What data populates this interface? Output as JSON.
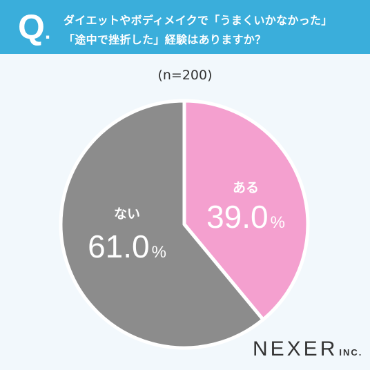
{
  "question": {
    "mark": "Q",
    "mark_dot": ".",
    "line1": "ダイエットやボディメイクで「うまくいかなかった」",
    "line2": "「途中で挫折した」経験はありますか？"
  },
  "sample_note": "(n=200)",
  "brand": {
    "name": "NEXER",
    "suffix": "INC."
  },
  "colors": {
    "header": "#3aaedb",
    "background": "#f2f8fc",
    "yes": "#f4a0cf",
    "no": "#8c8c8c"
  },
  "chart_data": {
    "type": "pie",
    "start": "12 o'clock, clockwise",
    "labels": [
      "ある",
      "ない"
    ],
    "values": [
      39.0,
      61.0
    ],
    "unit": "%",
    "colors": [
      "#f4a0cf",
      "#8c8c8c"
    ]
  }
}
